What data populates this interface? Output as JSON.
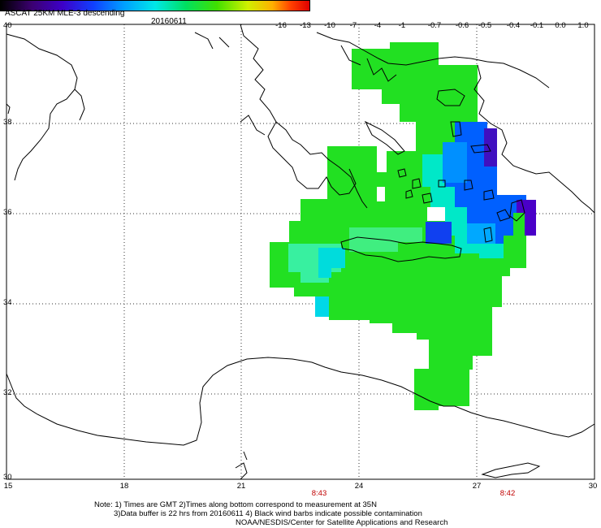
{
  "header": {
    "title": "ASCAT 25KM MLE-3 descending",
    "date": "20160611"
  },
  "colorbar": {
    "labels": [
      "-16",
      "-13",
      "-10",
      "-7",
      "-4",
      "-1",
      "-0.7",
      "-0.6",
      "-0.5",
      "-0.4",
      "-0.1",
      "0.0",
      "1.0"
    ]
  },
  "axes": {
    "lat_labels": [
      "40",
      "38",
      "36",
      "34",
      "32",
      "30"
    ],
    "lon_labels": [
      "15",
      "18",
      "21",
      "24",
      "27",
      "30"
    ]
  },
  "pass_times": [
    "8:43",
    "8:42"
  ],
  "notes": {
    "line1": "Note: 1) Times are GMT 2)Times along bottom correspond to measurement at 35N",
    "line2": "3)Data buffer is 22 hrs from 20160611 4) Black wind barbs indicate possible contamination",
    "line3": "NOAA/NESDIS/Center for Satellite Applications and Research"
  },
  "colors": {
    "green": "#22e022",
    "cyan": "#00e8d8",
    "blue": "#0050ff",
    "indigo": "#4000c0",
    "coast": "#000000"
  }
}
